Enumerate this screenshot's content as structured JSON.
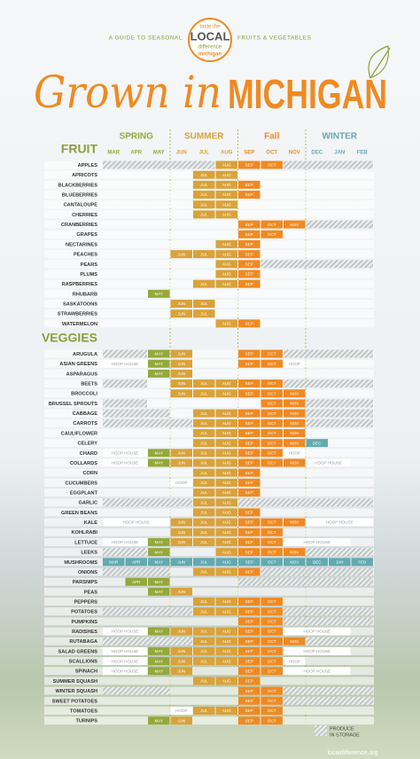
{
  "header": {
    "logo_top": "taste the",
    "logo_main": "LOCAL",
    "logo_bottom": "difference",
    "logo_state": "michigan",
    "tag_left": "A GUIDE TO SEASONAL",
    "tag_right": "FRUITS & VEGETABLES",
    "title_script": "Grown in",
    "title_caps": "MICHIGAN"
  },
  "seasons": [
    {
      "name": "SPRING",
      "color": "#95a83a"
    },
    {
      "name": "SUMMER",
      "color": "#d9a23a"
    },
    {
      "name": "Fall",
      "color": "#ef8a22"
    },
    {
      "name": "WINTER",
      "color": "#62aab0"
    }
  ],
  "months": [
    "MAR",
    "APR",
    "MAY",
    "JUN",
    "JUL",
    "AUG",
    "SEP",
    "OCT",
    "NOV",
    "DEC",
    "JAN",
    "FEB"
  ],
  "hoop_label": "HOOP HOUSE",
  "hoop_short": "HOOP",
  "sections": [
    {
      "title": "FRUIT",
      "rows": [
        {
          "name": "APPLES",
          "pattern": "SSSSSFFFSSSS"
        },
        {
          "name": "APRICOTS",
          "pattern": "....FF......"
        },
        {
          "name": "BLACKBERRIES",
          "pattern": "....FFF....."
        },
        {
          "name": "BLUEBERRIES",
          "pattern": "....FFF....."
        },
        {
          "name": "CANTALOUPE",
          "pattern": "....FF......"
        },
        {
          "name": "CHERRIES",
          "pattern": "....FF......"
        },
        {
          "name": "CRANBERRIES",
          "pattern": "......FFFSSS"
        },
        {
          "name": "GRAPES",
          "pattern": "......FF...."
        },
        {
          "name": "NECTARINES",
          "pattern": ".....FF....."
        },
        {
          "name": "PEACHES",
          "pattern": "...FFFF....."
        },
        {
          "name": "PEARS",
          "pattern": ".....FFSSSSS"
        },
        {
          "name": "PLUMS",
          "pattern": ".....FF....."
        },
        {
          "name": "RASPBERRIES",
          "pattern": "....FFF....."
        },
        {
          "name": "RHUBARB",
          "pattern": "..F........."
        },
        {
          "name": "SASKATOONS",
          "pattern": "...FF......."
        },
        {
          "name": "STRAWBERRIES",
          "pattern": "...FF......."
        },
        {
          "name": "WATERMELON",
          "pattern": ".....FF....."
        }
      ]
    },
    {
      "title": "VEGGIES",
      "rows": [
        {
          "name": "ARUGULA",
          "pattern": "SSFF..FFSSSS"
        },
        {
          "name": "ASIAN GREENS",
          "pattern": "HHFF..FFH..."
        },
        {
          "name": "ASPARAGUS",
          "pattern": "..FF........"
        },
        {
          "name": "BEETS",
          "pattern": "SS.FFFFFSSSS"
        },
        {
          "name": "BROCCOLI",
          "pattern": "...FFFFFF..."
        },
        {
          "name": "BRUSSEL SPROUTS",
          "pattern": "SS.....FFSSS"
        },
        {
          "name": "CABBAGE",
          "pattern": "SSS.FFFFFSSS"
        },
        {
          "name": "CARROTS",
          "pattern": "SSSSFFFFFSSS"
        },
        {
          "name": "CAULIFLOWER",
          "pattern": "....FFFFF..."
        },
        {
          "name": "CELERY",
          "pattern": "....FFFFFF.."
        },
        {
          "name": "CHARD",
          "pattern": "HHFFFFFFH..."
        },
        {
          "name": "COLLARDS",
          "pattern": "HHFFFFFFFHH."
        },
        {
          "name": "CORN",
          "pattern": "....FFF....."
        },
        {
          "name": "CUCUMBERS",
          "pattern": "...HFFF....."
        },
        {
          "name": "EGGPLANT",
          "pattern": "....FFF....."
        },
        {
          "name": "GARLIC",
          "pattern": "SSSSFFSSSSSS"
        },
        {
          "name": "GREEN BEANS",
          "pattern": "....FFF....."
        },
        {
          "name": "KALE",
          "pattern": "HHHFFFFFFHHH"
        },
        {
          "name": "KOHLRABI",
          "pattern": "...FFFFF...."
        },
        {
          "name": "LETTUCE",
          "pattern": "HHFFFFFFHHH."
        },
        {
          "name": "LEEKS",
          "pattern": "SSF..FFFFSSS"
        },
        {
          "name": "MUSHROOMS",
          "pattern": "FFFFFFFFFFFF",
          "color": "#62aab0"
        },
        {
          "name": "ONIONS",
          "pattern": "SSS.FFFSSSSS"
        },
        {
          "name": "PARSNIPS",
          "pattern": ".FF...SSSSSS"
        },
        {
          "name": "PEAS",
          "pattern": "..FF........"
        },
        {
          "name": "PEPPERS",
          "pattern": "....FFFF...."
        },
        {
          "name": "POTATOES",
          "pattern": "SSSSFFFFSSSS"
        },
        {
          "name": "PUMPKINS",
          "pattern": "......FFSSSS"
        },
        {
          "name": "RADISHES",
          "pattern": "HHFFFFFFHHH."
        },
        {
          "name": "RUTABAGA",
          "pattern": "SSSSFFFFFSSS"
        },
        {
          "name": "SALAD GREENS",
          "pattern": "HHFFFFFFHHH."
        },
        {
          "name": "SCALLIONS",
          "pattern": "HHFFFFFFH..."
        },
        {
          "name": "SPINACH",
          "pattern": "HHFF..FFHHH."
        },
        {
          "name": "SUMMER SQUASH",
          "pattern": "....FFF....."
        },
        {
          "name": "WINTER SQUASH",
          "pattern": "SSS...FFSSSS"
        },
        {
          "name": "SWEET POTATOES",
          "pattern": "......FFSSSS"
        },
        {
          "name": "TOMATOES",
          "pattern": "...HFFFF...."
        },
        {
          "name": "TURNIPS",
          "pattern": "..FF..FF...."
        }
      ]
    }
  ],
  "legend": {
    "storage_1": "PRODUCE",
    "storage_2": "IN STORAGE"
  },
  "footer": "localdifference.org"
}
